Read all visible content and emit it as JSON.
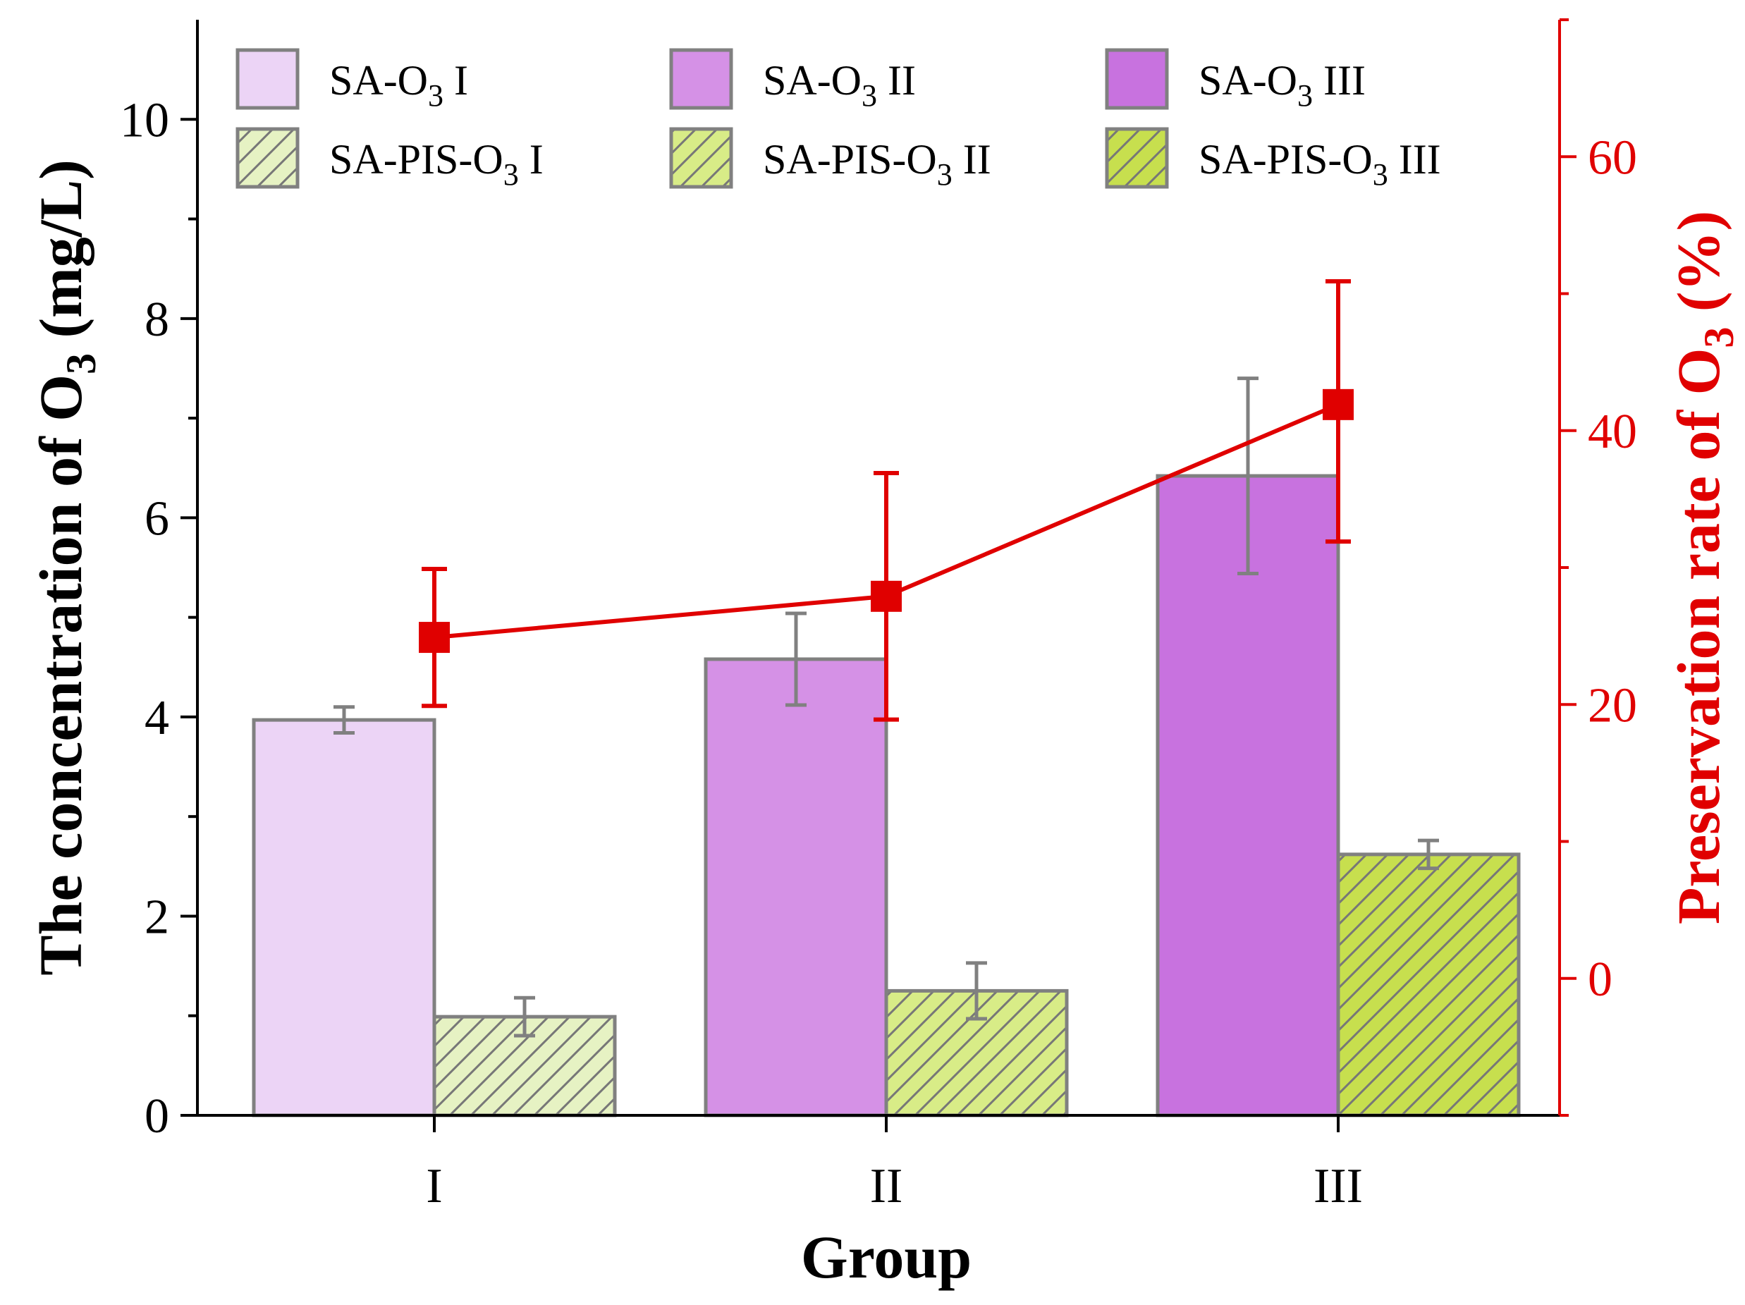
{
  "chart_data": {
    "type": "bar",
    "categories": [
      "I",
      "II",
      "III"
    ],
    "xlabel": "Group",
    "ylabel": {
      "prefix": "The concentration of O",
      "sub": "3",
      "suffix": " (mg/L)"
    },
    "y2label": {
      "prefix": "Preservation rate of O",
      "sub": "3",
      "suffix": " (%)"
    },
    "ylim": [
      0,
      11
    ],
    "yticks": [
      0,
      2,
      4,
      6,
      8,
      10
    ],
    "y2lim": [
      -10,
      70
    ],
    "y2ticks": [
      0,
      20,
      40,
      60
    ],
    "legend_position": "top",
    "bar_series": [
      {
        "name": "SA-O3 I",
        "label_main": "SA-O",
        "label_sub": "3",
        "label_tail": " I",
        "category": 0,
        "slot": 0,
        "value": 3.97,
        "err": 0.13,
        "color": "#ecd4f6",
        "hatch": false
      },
      {
        "name": "SA-PIS-O3 I",
        "label_main": "SA-PIS-O",
        "label_sub": "3",
        "label_tail": " I",
        "category": 0,
        "slot": 1,
        "value": 0.99,
        "err": 0.19,
        "color": "#e6f2c3",
        "hatch": true
      },
      {
        "name": "SA-O3 II",
        "label_main": "SA-O",
        "label_sub": "3",
        "label_tail": " II",
        "category": 1,
        "slot": 0,
        "value": 4.58,
        "err": 0.46,
        "color": "#d591e6",
        "hatch": false
      },
      {
        "name": "SA-PIS-O3 II",
        "label_main": "SA-PIS-O",
        "label_sub": "3",
        "label_tail": " II",
        "category": 1,
        "slot": 1,
        "value": 1.25,
        "err": 0.28,
        "color": "#d8ec87",
        "hatch": true
      },
      {
        "name": "SA-O3 III",
        "label_main": "SA-O",
        "label_sub": "3",
        "label_tail": " III",
        "category": 2,
        "slot": 0,
        "value": 6.42,
        "err": 0.98,
        "color": "#c872df",
        "hatch": false
      },
      {
        "name": "SA-PIS-O3 III",
        "label_main": "SA-PIS-O",
        "label_sub": "3",
        "label_tail": " III",
        "category": 2,
        "slot": 1,
        "value": 2.62,
        "err": 0.14,
        "color": "#c7df4e",
        "hatch": true
      }
    ],
    "line_series": {
      "name": "Preservation rate of O3",
      "axis": "right",
      "values": [
        24.9,
        27.9,
        41.9
      ],
      "err_low": [
        5,
        9,
        10
      ],
      "err_high": [
        5,
        9,
        9
      ],
      "color": "#e00000"
    },
    "colors": {
      "axis": "#000000",
      "right_axis": "#e00000",
      "bar_edge": "#808080",
      "error_bar": "#808080",
      "hatch_line": "#777777"
    }
  }
}
